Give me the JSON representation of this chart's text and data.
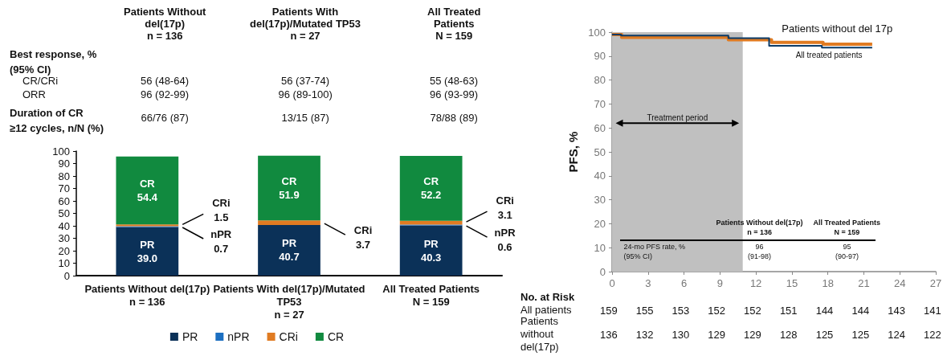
{
  "chart_data": [
    {
      "type": "bar",
      "stacked": true,
      "categories": [
        "Patients Without del(17p)\nn = 136",
        "Patients With del(17p)/Mutated\nTP53\nn = 27",
        "All Treated Patients\nN = 159"
      ],
      "series": [
        {
          "name": "PR",
          "color": "#0b3158",
          "values": [
            39.0,
            40.7,
            40.3
          ],
          "value_labels": [
            "39.0",
            "40.7",
            "40.3"
          ]
        },
        {
          "name": "nPR",
          "color": "#1c6fc1",
          "values": [
            0.7,
            0,
            0.6
          ],
          "value_labels": [
            "0.7",
            null,
            "0.6"
          ]
        },
        {
          "name": "CRi",
          "color": "#e07b22",
          "values": [
            1.5,
            3.7,
            3.1
          ],
          "value_labels": [
            "1.5",
            "3.7",
            "3.1"
          ]
        },
        {
          "name": "CR",
          "color": "#118a3f",
          "values": [
            54.4,
            51.9,
            52.2
          ],
          "value_labels": [
            "54.4",
            "51.9",
            "52.2"
          ]
        }
      ],
      "ylim": [
        0,
        100
      ],
      "yticks": [
        0,
        10,
        20,
        30,
        40,
        50,
        60,
        70,
        80,
        90,
        100
      ],
      "legend": "bottom",
      "annotations": [
        "Patients Without\ndel(17p)\nn = 136",
        "Patients With\ndel(17p)/Mutated TP53\nn = 27",
        "All Treated\nPatients\nN = 159",
        "Best response, %\n(95% CI)",
        "CR/CRi",
        "56 (48-64)",
        "56 (37-74)",
        "55 (48-63)",
        "ORR",
        "96 (92-99)",
        "96 (89-100)",
        "96 (93-99)",
        "Duration of CR\n≥12 cycles, n/N (%)",
        "66/76 (87)",
        "13/15 (87)",
        "78/88 (89)"
      ]
    },
    {
      "type": "step",
      "xlim": [
        0,
        27
      ],
      "xticks": [
        0,
        3,
        6,
        9,
        12,
        15,
        18,
        21,
        24,
        27
      ],
      "ylim": [
        0,
        100
      ],
      "yticks": [
        0,
        10,
        20,
        30,
        40,
        50,
        60,
        70,
        80,
        90,
        100
      ],
      "ylabel": "PFS, %",
      "legend": false,
      "marker": "none",
      "series": [
        {
          "name": "All treated patients",
          "color": "#0b3a66",
          "x": [
            0,
            0.75,
            9.7,
            13.1,
            17.5,
            21.7
          ],
          "values": [
            99,
            98.6,
            97.5,
            94.3,
            93.5,
            93.5
          ]
        },
        {
          "name": "Patients without del 17p",
          "color": "#e07b22",
          "x": [
            0,
            0.8,
            9.7,
            13.3,
            17.6,
            21.7
          ],
          "values": [
            99,
            97.8,
            96.8,
            95.7,
            95,
            95
          ]
        }
      ],
      "bands": [
        {
          "axis": "x",
          "from": 0,
          "to": 10.9,
          "label": "Treatment period",
          "color": "#c0c0c0"
        }
      ],
      "annotations": [
        "Patients Without del(17p)\nn = 136",
        "All Treated Patients\nN = 159",
        "24-mo PFS rate, %\n(95% CI)",
        "96\n(91-98)",
        "95\n(90-97)",
        "No. at Risk",
        "All patients",
        "159",
        "155",
        "153",
        "152",
        "152",
        "151",
        "144",
        "144",
        "143",
        "141",
        "Patients without del(17p)",
        "136",
        "132",
        "130",
        "129",
        "129",
        "128",
        "125",
        "125",
        "124",
        "122"
      ]
    }
  ]
}
